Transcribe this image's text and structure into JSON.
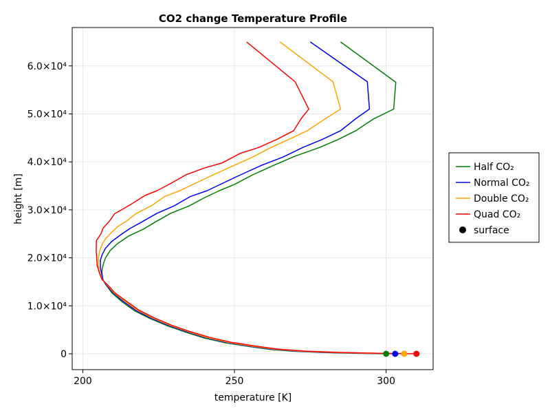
{
  "chart_data": {
    "type": "line",
    "title": "CO2 change Temperature Profile",
    "xlabel": "temperature [K]",
    "ylabel": "height [m]",
    "xlim": [
      196.5,
      315.5
    ],
    "ylim": [
      -3300,
      68000
    ],
    "x_ticks": [
      200,
      250,
      300
    ],
    "x_tick_labels": [
      "200",
      "250",
      "300"
    ],
    "y_ticks": [
      0,
      10000,
      20000,
      30000,
      40000,
      50000,
      60000
    ],
    "y_tick_labels": [
      "0",
      "1.0×10⁴",
      "2.0×10⁴",
      "3.0×10⁴",
      "4.0×10⁴",
      "5.0×10⁴",
      "6.0×10⁴"
    ],
    "grid": true,
    "legend_position": "right",
    "series": [
      {
        "name": "Half CO₂",
        "color": "#008000",
        "points": [
          [
            300,
            0
          ],
          [
            290,
            100
          ],
          [
            280,
            250
          ],
          [
            270,
            500
          ],
          [
            262,
            900
          ],
          [
            255,
            1500
          ],
          [
            247,
            2300
          ],
          [
            240,
            3300
          ],
          [
            234,
            4500
          ],
          [
            228,
            5800
          ],
          [
            222,
            7400
          ],
          [
            217,
            9000
          ],
          [
            213,
            10800
          ],
          [
            209.6,
            12700
          ],
          [
            207.5,
            14500
          ],
          [
            206.6,
            15500
          ],
          [
            206.3,
            17000
          ],
          [
            206.4,
            17700
          ],
          [
            206.9,
            19000
          ],
          [
            207.5,
            20000
          ],
          [
            209,
            21500
          ],
          [
            211.5,
            23000
          ],
          [
            215,
            24500
          ],
          [
            220,
            26000
          ],
          [
            224,
            27500
          ],
          [
            229,
            29300
          ],
          [
            235,
            30800
          ],
          [
            240,
            32500
          ],
          [
            245,
            34000
          ],
          [
            250,
            35300
          ],
          [
            256,
            37300
          ],
          [
            263,
            39300
          ],
          [
            270,
            41200
          ],
          [
            278,
            43000
          ],
          [
            284,
            44600
          ],
          [
            290,
            46500
          ],
          [
            296,
            49000
          ],
          [
            302.5,
            51000
          ],
          [
            303.2,
            56600
          ],
          [
            285,
            65000
          ]
        ]
      },
      {
        "name": "Normal CO₂",
        "color": "#0000ff",
        "points": [
          [
            303,
            0
          ],
          [
            292,
            100
          ],
          [
            281,
            260
          ],
          [
            271,
            520
          ],
          [
            262.5,
            930
          ],
          [
            255.5,
            1550
          ],
          [
            247.5,
            2350
          ],
          [
            240.5,
            3350
          ],
          [
            234.5,
            4550
          ],
          [
            228.5,
            5850
          ],
          [
            222.5,
            7450
          ],
          [
            217.5,
            9050
          ],
          [
            213.5,
            10850
          ],
          [
            210,
            12700
          ],
          [
            207.5,
            14500
          ],
          [
            206.6,
            15500
          ],
          [
            206.1,
            17000
          ],
          [
            205.8,
            18000
          ],
          [
            205.8,
            19500
          ],
          [
            206.4,
            20700
          ],
          [
            207.5,
            22000
          ],
          [
            209.5,
            23400
          ],
          [
            212.5,
            24800
          ],
          [
            215.5,
            26100
          ],
          [
            219.5,
            27500
          ],
          [
            224.5,
            29300
          ],
          [
            230,
            30800
          ],
          [
            235.5,
            32800
          ],
          [
            241,
            34000
          ],
          [
            246,
            35500
          ],
          [
            252,
            37300
          ],
          [
            259,
            39300
          ],
          [
            266,
            41000
          ],
          [
            272.5,
            43000
          ],
          [
            279,
            44700
          ],
          [
            285,
            46500
          ],
          [
            290,
            49000
          ],
          [
            294.5,
            51000
          ],
          [
            293.8,
            56700
          ],
          [
            275,
            65000
          ]
        ]
      },
      {
        "name": "Double CO₂",
        "color": "#ffa500",
        "points": [
          [
            306,
            0
          ],
          [
            294.5,
            110
          ],
          [
            283,
            270
          ],
          [
            272,
            540
          ],
          [
            263.5,
            950
          ],
          [
            256,
            1580
          ],
          [
            248,
            2380
          ],
          [
            241,
            3380
          ],
          [
            235,
            4580
          ],
          [
            229,
            5880
          ],
          [
            223,
            7480
          ],
          [
            218,
            9080
          ],
          [
            214,
            10880
          ],
          [
            210.3,
            12700
          ],
          [
            207.8,
            14500
          ],
          [
            206.4,
            15500
          ],
          [
            205.6,
            17000
          ],
          [
            205.1,
            18500
          ],
          [
            205.2,
            20000
          ],
          [
            205.5,
            21300
          ],
          [
            206.3,
            22700
          ],
          [
            207.5,
            24000
          ],
          [
            209.5,
            25300
          ],
          [
            211.5,
            26500
          ],
          [
            214.5,
            27700
          ],
          [
            217.5,
            29200
          ],
          [
            223,
            31000
          ],
          [
            227,
            32800
          ],
          [
            232,
            34000
          ],
          [
            237,
            35500
          ],
          [
            243,
            37300
          ],
          [
            250,
            39300
          ],
          [
            256,
            41000
          ],
          [
            262,
            43000
          ],
          [
            268,
            44700
          ],
          [
            274,
            46500
          ],
          [
            280,
            49000
          ],
          [
            285,
            51000
          ],
          [
            282.5,
            56700
          ],
          [
            265,
            65000
          ]
        ]
      },
      {
        "name": "Quad CO₂",
        "color": "#ff0000",
        "points": [
          [
            310,
            0
          ],
          [
            297.5,
            115
          ],
          [
            285,
            280
          ],
          [
            273.5,
            560
          ],
          [
            264.5,
            970
          ],
          [
            257,
            1600
          ],
          [
            249,
            2400
          ],
          [
            242,
            3400
          ],
          [
            235.5,
            4600
          ],
          [
            229.5,
            5900
          ],
          [
            223.5,
            7500
          ],
          [
            218.5,
            9100
          ],
          [
            214.5,
            10900
          ],
          [
            210.6,
            12700
          ],
          [
            208,
            14500
          ],
          [
            206.3,
            15500
          ],
          [
            205.4,
            17000
          ],
          [
            204.7,
            18500
          ],
          [
            204.6,
            20000
          ],
          [
            204.4,
            21500
          ],
          [
            204.5,
            23600
          ],
          [
            206,
            25000
          ],
          [
            206.7,
            26200
          ],
          [
            208.6,
            27500
          ],
          [
            210.5,
            29200
          ],
          [
            215.5,
            31000
          ],
          [
            220.5,
            33000
          ],
          [
            224.5,
            34000
          ],
          [
            229,
            35500
          ],
          [
            234,
            37300
          ],
          [
            240,
            38700
          ],
          [
            246,
            39800
          ],
          [
            252,
            41800
          ],
          [
            258,
            43000
          ],
          [
            264,
            44700
          ],
          [
            269.5,
            46500
          ],
          [
            272,
            49000
          ],
          [
            274.5,
            51000
          ],
          [
            270,
            56700
          ],
          [
            254,
            65000
          ]
        ]
      }
    ],
    "surface": {
      "name": "surface",
      "points": [
        {
          "x": 300,
          "y": 0,
          "color": "#008000"
        },
        {
          "x": 303,
          "y": 0,
          "color": "#0000ff"
        },
        {
          "x": 306,
          "y": 0,
          "color": "#ffa500"
        },
        {
          "x": 310,
          "y": 0,
          "color": "#ff0000"
        }
      ]
    },
    "legend": [
      {
        "label": "Half CO₂",
        "color": "#008000",
        "kind": "line"
      },
      {
        "label": "Normal CO₂",
        "color": "#0000ff",
        "kind": "line"
      },
      {
        "label": "Double CO₂",
        "color": "#ffa500",
        "kind": "line"
      },
      {
        "label": "Quad CO₂",
        "color": "#ff0000",
        "kind": "line"
      },
      {
        "label": "surface",
        "color": "#000000",
        "kind": "marker"
      }
    ]
  }
}
